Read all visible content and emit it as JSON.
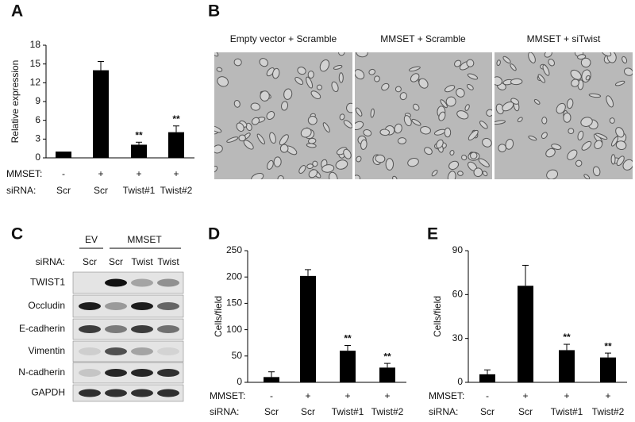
{
  "panel_labels": [
    "A",
    "B",
    "C",
    "D",
    "E"
  ],
  "chart_data": [
    {
      "type": "bar",
      "y_label": "Relative expression",
      "color": "#000000",
      "ylim": [
        0,
        18
      ],
      "yticks": [
        0,
        3,
        6,
        9,
        12,
        15,
        18
      ],
      "treatment_label": "MMSET:",
      "treatment": [
        "-",
        "+",
        "+",
        "+"
      ],
      "categories_label": "siRNA:",
      "categories": [
        "Scr",
        "Scr",
        "Twist#1",
        "Twist#2"
      ],
      "values": [
        1,
        14,
        2.1,
        4.1
      ],
      "errors": [
        0,
        1.4,
        0.4,
        1.0
      ],
      "significance": [
        null,
        null,
        "**",
        "**"
      ]
    },
    {
      "type": "bar",
      "y_label": "Cells/field",
      "color": "#000000",
      "ylim": [
        0,
        250
      ],
      "yticks": [
        0,
        50,
        100,
        150,
        200,
        250
      ],
      "treatment_label": "MMSET:",
      "treatment": [
        "-",
        "+",
        "+",
        "+"
      ],
      "categories_label": "siRNA:",
      "categories": [
        "Scr",
        "Scr",
        "Twist#1",
        "Twist#2"
      ],
      "values": [
        10,
        202,
        60,
        28
      ],
      "errors": [
        10,
        12,
        10,
        8
      ],
      "significance": [
        null,
        null,
        "**",
        "**"
      ]
    },
    {
      "type": "bar",
      "y_label": "Cells/field",
      "color": "#000000",
      "ylim": [
        0,
        90
      ],
      "yticks": [
        0,
        30,
        60,
        90
      ],
      "treatment_label": "MMSET:",
      "treatment": [
        "-",
        "+",
        "+",
        "+"
      ],
      "categories_label": "siRNA:",
      "categories": [
        "Scr",
        "Scr",
        "Twist#1",
        "Twist#2"
      ],
      "values": [
        5.5,
        66,
        22,
        17
      ],
      "errors": [
        3,
        14,
        4,
        3
      ],
      "significance": [
        null,
        null,
        "**",
        "**"
      ]
    }
  ],
  "micrographs": [
    {
      "caption": "Empty vector + Scramble"
    },
    {
      "caption": "MMSET + Scramble"
    },
    {
      "caption": "MMSET + siTwist"
    }
  ],
  "western_blot": {
    "groups": [
      "EV",
      "MMSET"
    ],
    "lane_label": "siRNA:",
    "lanes": [
      "Scr",
      "Scr",
      "Twist",
      "Twist"
    ],
    "proteins": [
      "TWIST1",
      "Occludin",
      "E-cadherin",
      "Vimentin",
      "N-cadherin",
      "GAPDH"
    ]
  }
}
